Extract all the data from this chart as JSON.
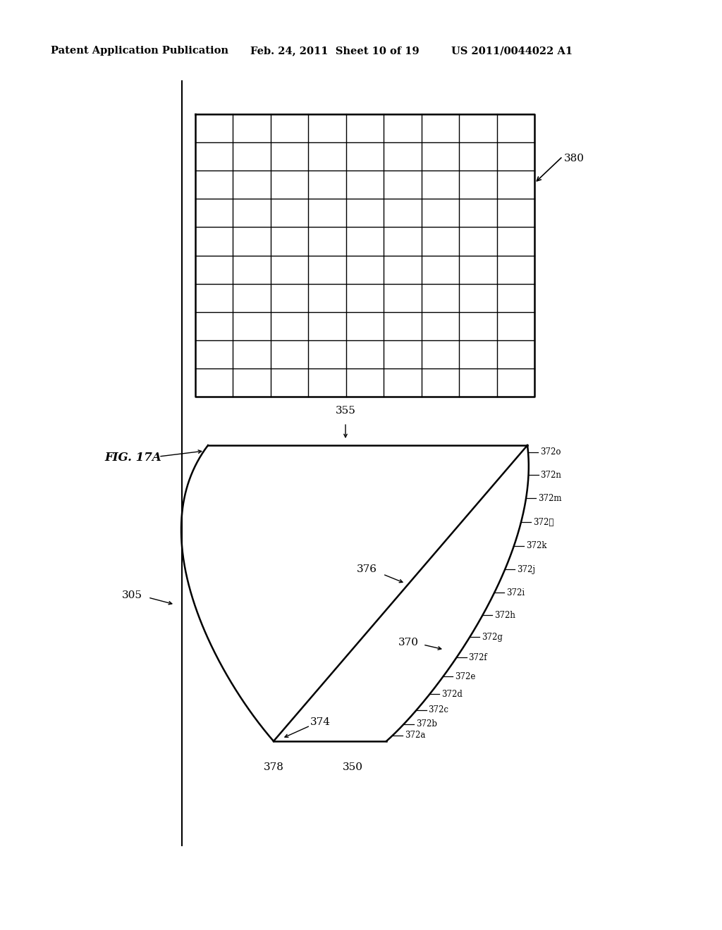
{
  "header_left": "Patent Application Publication",
  "header_mid": "Feb. 24, 2011  Sheet 10 of 19",
  "header_right": "US 2011/0044022 A1",
  "fig_label": "FIG. 17A",
  "label_380": "380",
  "label_355": "355",
  "label_305": "305",
  "label_370": "370",
  "label_376": "376",
  "label_374": "374",
  "label_378": "378",
  "label_350": "350",
  "grid_rows": 10,
  "grid_cols": 9,
  "lens_labels": [
    "372o",
    "372n",
    "372m",
    "372ℓ",
    "372k",
    "372j",
    "372i",
    "372h",
    "372g",
    "372f",
    "372e",
    "372d",
    "372c",
    "372b",
    "372a"
  ],
  "background_color": "#ffffff",
  "line_color": "#000000"
}
